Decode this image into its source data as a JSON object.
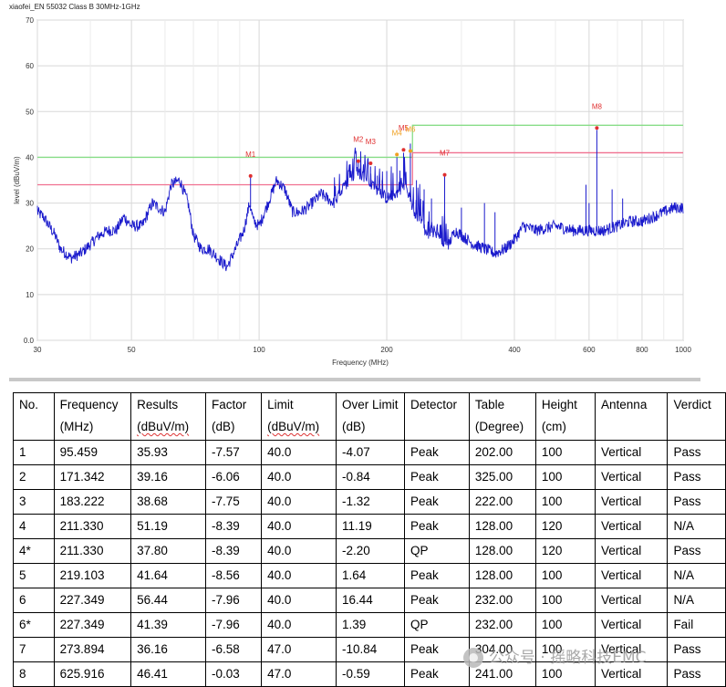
{
  "chart_data": {
    "type": "line",
    "title": "xiaofei_EN 55032 Class B 30MHz-1GHz",
    "xlabel": "Frequency (MHz)",
    "ylabel": "level (dBuV/m)",
    "xscale": "log",
    "xlim": [
      30,
      1000
    ],
    "ylim": [
      0,
      70
    ],
    "grid": true,
    "x_ticks": [
      30,
      50,
      100,
      200,
      400,
      600,
      800,
      1000
    ],
    "x_tick_labels": [
      "30",
      "50",
      "100",
      "200",
      "400",
      "600",
      "800",
      "1000"
    ],
    "y_ticks": [
      0,
      10,
      20,
      30,
      40,
      50,
      60,
      70
    ],
    "y_tick_labels": [
      "0.0",
      "10",
      "20",
      "30",
      "40",
      "50",
      "60",
      "70"
    ],
    "limit_lines": [
      {
        "color": "#88dd88",
        "points": [
          [
            30,
            40
          ],
          [
            230,
            40
          ],
          [
            230,
            47
          ],
          [
            1000,
            47
          ]
        ]
      },
      {
        "color": "#f07090",
        "points": [
          [
            30,
            34
          ],
          [
            230,
            34
          ],
          [
            230,
            41
          ],
          [
            1000,
            41
          ]
        ]
      }
    ],
    "trace_color": "#1a1acc",
    "trace_anchors": [
      [
        30,
        28
      ],
      [
        31,
        27
      ],
      [
        32,
        25
      ],
      [
        33,
        23
      ],
      [
        34,
        20
      ],
      [
        36,
        18
      ],
      [
        38,
        19
      ],
      [
        40,
        21
      ],
      [
        42,
        23
      ],
      [
        44,
        24
      ],
      [
        46,
        24
      ],
      [
        48,
        27
      ],
      [
        50,
        25
      ],
      [
        53,
        25
      ],
      [
        56,
        30
      ],
      [
        60,
        28
      ],
      [
        62,
        34
      ],
      [
        65,
        35
      ],
      [
        68,
        30
      ],
      [
        70,
        23
      ],
      [
        73,
        20
      ],
      [
        76,
        20
      ],
      [
        80,
        18
      ],
      [
        84,
        16
      ],
      [
        88,
        20
      ],
      [
        92,
        24
      ],
      [
        95,
        30
      ],
      [
        97,
        26
      ],
      [
        100,
        25
      ],
      [
        105,
        30
      ],
      [
        110,
        35
      ],
      [
        115,
        33
      ],
      [
        120,
        28
      ],
      [
        125,
        28
      ],
      [
        130,
        29
      ],
      [
        140,
        32
      ],
      [
        150,
        30
      ],
      [
        160,
        34
      ],
      [
        170,
        37
      ],
      [
        180,
        35
      ],
      [
        190,
        33
      ],
      [
        200,
        31
      ],
      [
        210,
        32
      ],
      [
        220,
        34
      ],
      [
        230,
        29
      ],
      [
        240,
        26
      ],
      [
        250,
        23
      ],
      [
        260,
        24
      ],
      [
        270,
        22
      ],
      [
        280,
        21
      ],
      [
        290,
        24
      ],
      [
        300,
        23
      ],
      [
        320,
        21
      ],
      [
        340,
        20
      ],
      [
        360,
        19
      ],
      [
        380,
        20
      ],
      [
        400,
        22
      ],
      [
        420,
        25
      ],
      [
        450,
        24
      ],
      [
        500,
        25
      ],
      [
        550,
        24
      ],
      [
        600,
        24
      ],
      [
        650,
        24
      ],
      [
        700,
        25
      ],
      [
        750,
        26
      ],
      [
        800,
        26
      ],
      [
        850,
        27
      ],
      [
        900,
        28
      ],
      [
        950,
        29
      ],
      [
        1000,
        29
      ]
    ],
    "trace_spikes": [
      [
        95.459,
        36
      ],
      [
        171.342,
        39
      ],
      [
        183.222,
        38
      ],
      [
        190,
        36
      ],
      [
        195,
        35
      ],
      [
        200,
        37
      ],
      [
        205,
        38
      ],
      [
        211.33,
        40
      ],
      [
        219.103,
        41
      ],
      [
        227.349,
        43
      ],
      [
        235,
        35
      ],
      [
        245,
        33
      ],
      [
        255,
        31
      ],
      [
        273.894,
        36
      ],
      [
        300,
        29
      ],
      [
        340,
        30
      ],
      [
        360,
        28
      ],
      [
        625.916,
        46
      ],
      [
        590,
        34
      ],
      [
        680,
        33
      ],
      [
        720,
        31
      ],
      [
        600,
        30
      ]
    ],
    "markers": [
      {
        "label": "M1",
        "x": 95.459,
        "y": 35.93,
        "color": "#e03030"
      },
      {
        "label": "M2",
        "x": 171.342,
        "y": 39.16,
        "color": "#e03030"
      },
      {
        "label": "M3",
        "x": 183.222,
        "y": 38.68,
        "color": "#e03030"
      },
      {
        "label": "M4",
        "x": 211.33,
        "y": 40.6,
        "color": "#f0a020"
      },
      {
        "label": "M5",
        "x": 219.103,
        "y": 41.64,
        "color": "#e03030"
      },
      {
        "label": "M6",
        "x": 227.349,
        "y": 41.39,
        "color": "#f0a020"
      },
      {
        "label": "M7",
        "x": 273.894,
        "y": 36.16,
        "color": "#e03030"
      },
      {
        "label": "M8",
        "x": 625.916,
        "y": 46.41,
        "color": "#e03030"
      }
    ]
  },
  "table": {
    "headers": [
      [
        "No.",
        ""
      ],
      [
        "Frequency",
        "(MHz)"
      ],
      [
        "Results",
        "(dBuV/m)"
      ],
      [
        "Factor",
        "(dB)"
      ],
      [
        "Limit",
        "(dBuV/m)"
      ],
      [
        "Over Limit",
        "(dB)"
      ],
      [
        "Detector",
        ""
      ],
      [
        "Table",
        "(Degree)"
      ],
      [
        "Height",
        "(cm)"
      ],
      [
        "Antenna",
        ""
      ],
      [
        "Verdict",
        ""
      ]
    ],
    "rows": [
      [
        "1",
        "95.459",
        "35.93",
        "-7.57",
        "40.0",
        "-4.07",
        "Peak",
        "202.00",
        "100",
        "Vertical",
        "Pass"
      ],
      [
        "2",
        "171.342",
        "39.16",
        "-6.06",
        "40.0",
        "-0.84",
        "Peak",
        "325.00",
        "100",
        "Vertical",
        "Pass"
      ],
      [
        "3",
        "183.222",
        "38.68",
        "-7.75",
        "40.0",
        "-1.32",
        "Peak",
        "222.00",
        "100",
        "Vertical",
        "Pass"
      ],
      [
        "4",
        "211.330",
        "51.19",
        "-8.39",
        "40.0",
        "11.19",
        "Peak",
        "128.00",
        "120",
        "Vertical",
        "N/A"
      ],
      [
        "4*",
        "211.330",
        "37.80",
        "-8.39",
        "40.0",
        "-2.20",
        "QP",
        "128.00",
        "120",
        "Vertical",
        "Pass"
      ],
      [
        "5",
        "219.103",
        "41.64",
        "-8.56",
        "40.0",
        "1.64",
        "Peak",
        "128.00",
        "100",
        "Vertical",
        "N/A"
      ],
      [
        "6",
        "227.349",
        "56.44",
        "-7.96",
        "40.0",
        "16.44",
        "Peak",
        "232.00",
        "100",
        "Vertical",
        "N/A"
      ],
      [
        "6*",
        "227.349",
        "41.39",
        "-7.96",
        "40.0",
        "1.39",
        "QP",
        "232.00",
        "100",
        "Vertical",
        "Fail"
      ],
      [
        "7",
        "273.894",
        "36.16",
        "-6.58",
        "47.0",
        "-10.84",
        "Peak",
        "304.00",
        "100",
        "Vertical",
        "Pass"
      ],
      [
        "8",
        "625.916",
        "46.41",
        "-0.03",
        "47.0",
        "-0.59",
        "Peak",
        "241.00",
        "100",
        "Vertical",
        "Pass"
      ]
    ]
  },
  "watermark": "公众号 · 摇略科技EMC"
}
